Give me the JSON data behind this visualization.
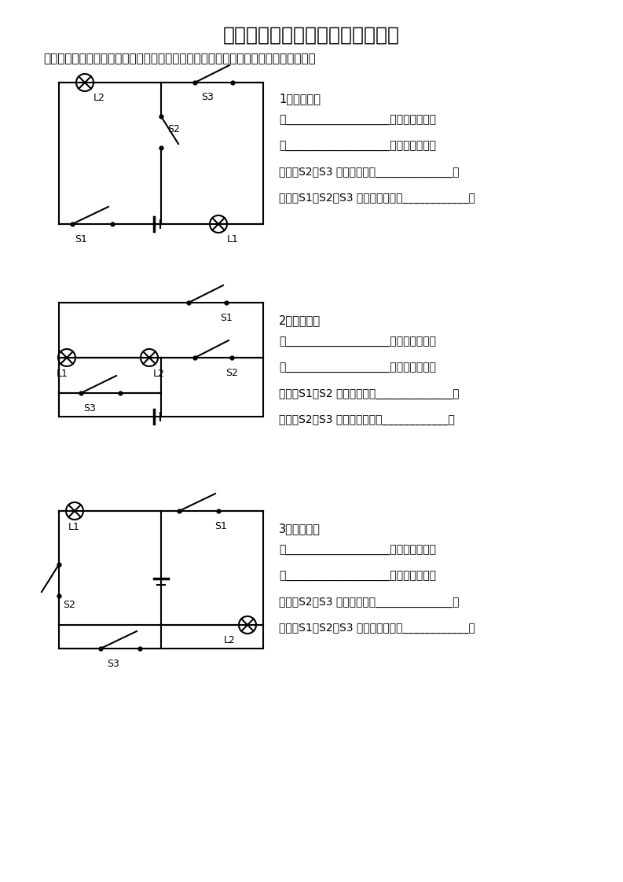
{
  "title": "初中物理电学电路分析练习（二）",
  "subtitle": "一、看电路图，按要求完成分析填空，并尝试画出各小题内各种状态下的简化电路图：",
  "title_fontsize": 18,
  "subtitle_fontsize": 11,
  "q1_label": "1、如左图：",
  "q2_label": "2、如左图：",
  "q3_label": "3、如左图：",
  "q1_lines": [
    "当___________________时，两灯串联；",
    "当___________________时，两灯并联；",
    "当开关S2、S3 同时闭合时，______________；",
    "当开关S1、S2、S3 都闭合时，电路____________。"
  ],
  "q2_lines": [
    "当___________________时，两灯串联；",
    "当___________________时，两灯并联；",
    "当开关S1、S2 同时闭合时，______________；",
    "当开关S2、S3 都闭合时，电路____________。"
  ],
  "q3_lines": [
    "当___________________时，两灯串联；",
    "当___________________时，两灯并联；",
    "当开关S2、S3 同时闭合时，______________；",
    "当开关S1、S2、S3 都闭合时，电路____________。"
  ],
  "bg_color": "#ffffff",
  "line_color": "#000000",
  "text_color": "#000000"
}
